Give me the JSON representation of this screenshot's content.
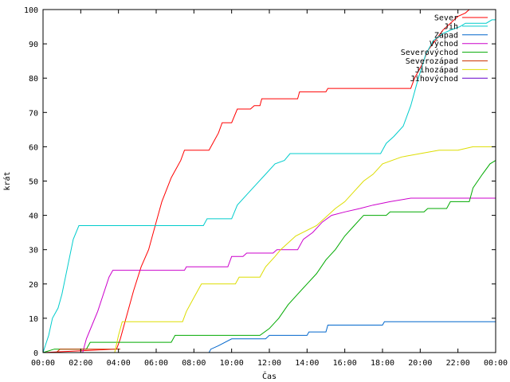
{
  "chart_data": {
    "type": "line",
    "xlabel": "Čas",
    "ylabel": "krát",
    "xlim": [
      0,
      24
    ],
    "ylim": [
      0,
      100
    ],
    "grid": false,
    "legend_placement": "top-right",
    "x_ticks": [
      {
        "value": 0,
        "label": "00:00"
      },
      {
        "value": 2,
        "label": "02:00"
      },
      {
        "value": 4,
        "label": "04:00"
      },
      {
        "value": 6,
        "label": "06:00"
      },
      {
        "value": 8,
        "label": "08:00"
      },
      {
        "value": 10,
        "label": "10:00"
      },
      {
        "value": 12,
        "label": "12:00"
      },
      {
        "value": 14,
        "label": "14:00"
      },
      {
        "value": 16,
        "label": "16:00"
      },
      {
        "value": 18,
        "label": "18:00"
      },
      {
        "value": 20,
        "label": "20:00"
      },
      {
        "value": 22,
        "label": "22:00"
      },
      {
        "value": 24,
        "label": "00:00"
      }
    ],
    "y_ticks": [
      0,
      10,
      20,
      30,
      40,
      50,
      60,
      70,
      80,
      90,
      100
    ],
    "series": [
      {
        "name": "Sever",
        "color": "#ff0000",
        "points": [
          [
            0,
            0
          ],
          [
            3.9,
            1
          ],
          [
            4.1,
            4
          ],
          [
            4.4,
            10
          ],
          [
            4.8,
            18
          ],
          [
            5.2,
            25
          ],
          [
            5.6,
            30
          ],
          [
            5.9,
            36
          ],
          [
            6.3,
            44
          ],
          [
            6.8,
            51
          ],
          [
            7.3,
            56
          ],
          [
            7.5,
            59
          ],
          [
            8.8,
            59
          ],
          [
            9.0,
            61
          ],
          [
            9.3,
            64
          ],
          [
            9.5,
            67
          ],
          [
            10.0,
            67
          ],
          [
            10.3,
            71
          ],
          [
            11.0,
            71
          ],
          [
            11.2,
            72
          ],
          [
            11.5,
            72
          ],
          [
            11.6,
            74
          ],
          [
            13.5,
            74
          ],
          [
            13.6,
            76
          ],
          [
            15.0,
            76
          ],
          [
            15.1,
            77
          ],
          [
            19.5,
            77
          ],
          [
            19.7,
            80
          ],
          [
            20.1,
            84
          ],
          [
            20.4,
            88
          ],
          [
            20.8,
            91
          ],
          [
            21.2,
            94
          ],
          [
            21.6,
            96
          ],
          [
            22.0,
            98
          ],
          [
            22.4,
            99
          ],
          [
            22.6,
            100
          ]
        ]
      },
      {
        "name": "Jih",
        "color": "#00cccc",
        "points": [
          [
            0,
            0
          ],
          [
            0.3,
            5
          ],
          [
            0.5,
            10
          ],
          [
            0.8,
            13
          ],
          [
            1.0,
            17
          ],
          [
            1.3,
            25
          ],
          [
            1.6,
            33
          ],
          [
            1.9,
            37
          ],
          [
            8.5,
            37
          ],
          [
            8.7,
            39
          ],
          [
            10.0,
            39
          ],
          [
            10.3,
            43
          ],
          [
            10.8,
            46
          ],
          [
            11.3,
            49
          ],
          [
            11.8,
            52
          ],
          [
            12.3,
            55
          ],
          [
            12.8,
            56
          ],
          [
            13.1,
            58
          ],
          [
            17.9,
            58
          ],
          [
            18.2,
            61
          ],
          [
            18.6,
            63
          ],
          [
            19.1,
            66
          ],
          [
            19.5,
            72
          ],
          [
            19.9,
            80
          ],
          [
            20.3,
            87
          ],
          [
            20.7,
            91
          ],
          [
            21.2,
            93
          ],
          [
            21.6,
            94
          ],
          [
            22.1,
            95
          ],
          [
            22.4,
            96
          ],
          [
            23.0,
            96
          ],
          [
            23.5,
            96
          ],
          [
            23.8,
            97
          ],
          [
            24,
            97
          ]
        ]
      },
      {
        "name": "Západ",
        "color": "#0066cc",
        "points": [
          [
            0,
            0
          ],
          [
            8.8,
            0
          ],
          [
            8.9,
            1
          ],
          [
            9.3,
            2
          ],
          [
            10.0,
            4
          ],
          [
            11.8,
            4
          ],
          [
            12.0,
            5
          ],
          [
            14.0,
            5
          ],
          [
            14.1,
            6
          ],
          [
            15.0,
            6
          ],
          [
            15.1,
            8
          ],
          [
            18.0,
            8
          ],
          [
            18.1,
            9
          ],
          [
            24,
            9
          ]
        ]
      },
      {
        "name": "Východ",
        "color": "#cc00cc",
        "points": [
          [
            0,
            0
          ],
          [
            2.1,
            0
          ],
          [
            2.3,
            4
          ],
          [
            2.6,
            8
          ],
          [
            2.9,
            12
          ],
          [
            3.2,
            17
          ],
          [
            3.5,
            22
          ],
          [
            3.7,
            24
          ],
          [
            7.5,
            24
          ],
          [
            7.6,
            25
          ],
          [
            9.8,
            25
          ],
          [
            10.0,
            28
          ],
          [
            10.6,
            28
          ],
          [
            10.8,
            29
          ],
          [
            12.2,
            29
          ],
          [
            12.4,
            30
          ],
          [
            13.5,
            30
          ],
          [
            13.8,
            33
          ],
          [
            14.3,
            35
          ],
          [
            14.8,
            38
          ],
          [
            15.3,
            40
          ],
          [
            16.0,
            41
          ],
          [
            16.8,
            42
          ],
          [
            17.5,
            43
          ],
          [
            18.4,
            44
          ],
          [
            19.5,
            45
          ],
          [
            24,
            45
          ]
        ]
      },
      {
        "name": "Severovýchod",
        "color": "#00aa00",
        "points": [
          [
            0,
            0
          ],
          [
            0.6,
            1
          ],
          [
            2.3,
            1
          ],
          [
            2.5,
            3
          ],
          [
            6.8,
            3
          ],
          [
            7.0,
            5
          ],
          [
            11.5,
            5
          ],
          [
            12.0,
            7
          ],
          [
            12.5,
            10
          ],
          [
            13.0,
            14
          ],
          [
            13.5,
            17
          ],
          [
            14.0,
            20
          ],
          [
            14.5,
            23
          ],
          [
            15.0,
            27
          ],
          [
            15.5,
            30
          ],
          [
            16.0,
            34
          ],
          [
            16.5,
            37
          ],
          [
            17.0,
            40
          ],
          [
            18.2,
            40
          ],
          [
            18.4,
            41
          ],
          [
            20.2,
            41
          ],
          [
            20.4,
            42
          ],
          [
            21.4,
            42
          ],
          [
            21.6,
            44
          ],
          [
            22.6,
            44
          ],
          [
            22.8,
            48
          ],
          [
            23.3,
            52
          ],
          [
            23.7,
            55
          ],
          [
            24,
            56
          ]
        ]
      },
      {
        "name": "Severozápad",
        "color": "#cc3300",
        "points": [
          [
            0,
            0
          ],
          [
            0.7,
            0
          ],
          [
            0.9,
            1
          ],
          [
            4.0,
            1
          ],
          [
            4.1,
            1
          ]
        ]
      },
      {
        "name": "Jihozápad",
        "color": "#dddd00",
        "points": [
          [
            0,
            0
          ],
          [
            3.8,
            0
          ],
          [
            4.0,
            5
          ],
          [
            4.2,
            9
          ],
          [
            7.4,
            9
          ],
          [
            7.6,
            12
          ],
          [
            8.0,
            16
          ],
          [
            8.4,
            20
          ],
          [
            10.2,
            20
          ],
          [
            10.4,
            22
          ],
          [
            11.5,
            22
          ],
          [
            11.8,
            25
          ],
          [
            12.3,
            28
          ],
          [
            12.6,
            30
          ],
          [
            13.0,
            32
          ],
          [
            13.4,
            34
          ],
          [
            14.5,
            37
          ],
          [
            15.1,
            40
          ],
          [
            15.5,
            42
          ],
          [
            16.0,
            44
          ],
          [
            16.5,
            47
          ],
          [
            17.0,
            50
          ],
          [
            17.5,
            52
          ],
          [
            18.0,
            55
          ],
          [
            19.0,
            57
          ],
          [
            20.0,
            58
          ],
          [
            21.0,
            59
          ],
          [
            22.0,
            59
          ],
          [
            22.8,
            60
          ],
          [
            24,
            60
          ]
        ]
      },
      {
        "name": "Jihovýchod",
        "color": "#6600cc",
        "points": [
          [
            0,
            0
          ],
          [
            24,
            0
          ]
        ]
      }
    ]
  }
}
